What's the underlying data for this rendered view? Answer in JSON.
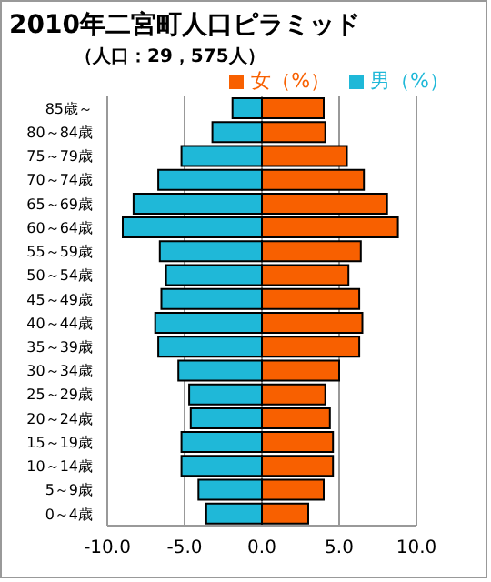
{
  "chart_data": {
    "type": "bar",
    "title": "2010年二宮町人口ピラミッド",
    "subtitle": "（人口：29，575人）",
    "orientation": "horizontal",
    "stacked": true,
    "grid": "x",
    "legend": "top right",
    "categories": [
      "85歳～",
      "80～84歳",
      "75～79歳",
      "70～74歳",
      "65～69歳",
      "60～64歳",
      "55～59歳",
      "50～54歳",
      "45～49歳",
      "40～44歳",
      "35～39歳",
      "30～34歳",
      "25～29歳",
      "20～24歳",
      "15～19歳",
      "10～14歳",
      "5～9歳",
      "0～4歳"
    ],
    "series": [
      {
        "name": "男（%）",
        "color": "#1fb8d8",
        "values": [
          -1.9,
          -3.2,
          -5.2,
          -6.7,
          -8.3,
          -9.0,
          -6.6,
          -6.2,
          -6.5,
          -6.9,
          -6.7,
          -5.4,
          -4.7,
          -4.6,
          -5.2,
          -5.2,
          -4.1,
          -3.6
        ]
      },
      {
        "name": "女（%）",
        "color": "#f86000",
        "values": [
          4.0,
          4.1,
          5.5,
          6.6,
          8.1,
          8.8,
          6.4,
          5.6,
          6.3,
          6.5,
          6.3,
          5.0,
          4.1,
          4.4,
          4.6,
          4.6,
          4.0,
          3.0
        ]
      }
    ],
    "xlim": [
      -10,
      10
    ],
    "xticks": [
      {
        "value": -10,
        "label": "-10.0"
      },
      {
        "value": -5,
        "label": "-5.0"
      },
      {
        "value": 0,
        "label": "0.0"
      },
      {
        "value": 5,
        "label": "5.0"
      },
      {
        "value": 10,
        "label": "10.0"
      }
    ]
  }
}
